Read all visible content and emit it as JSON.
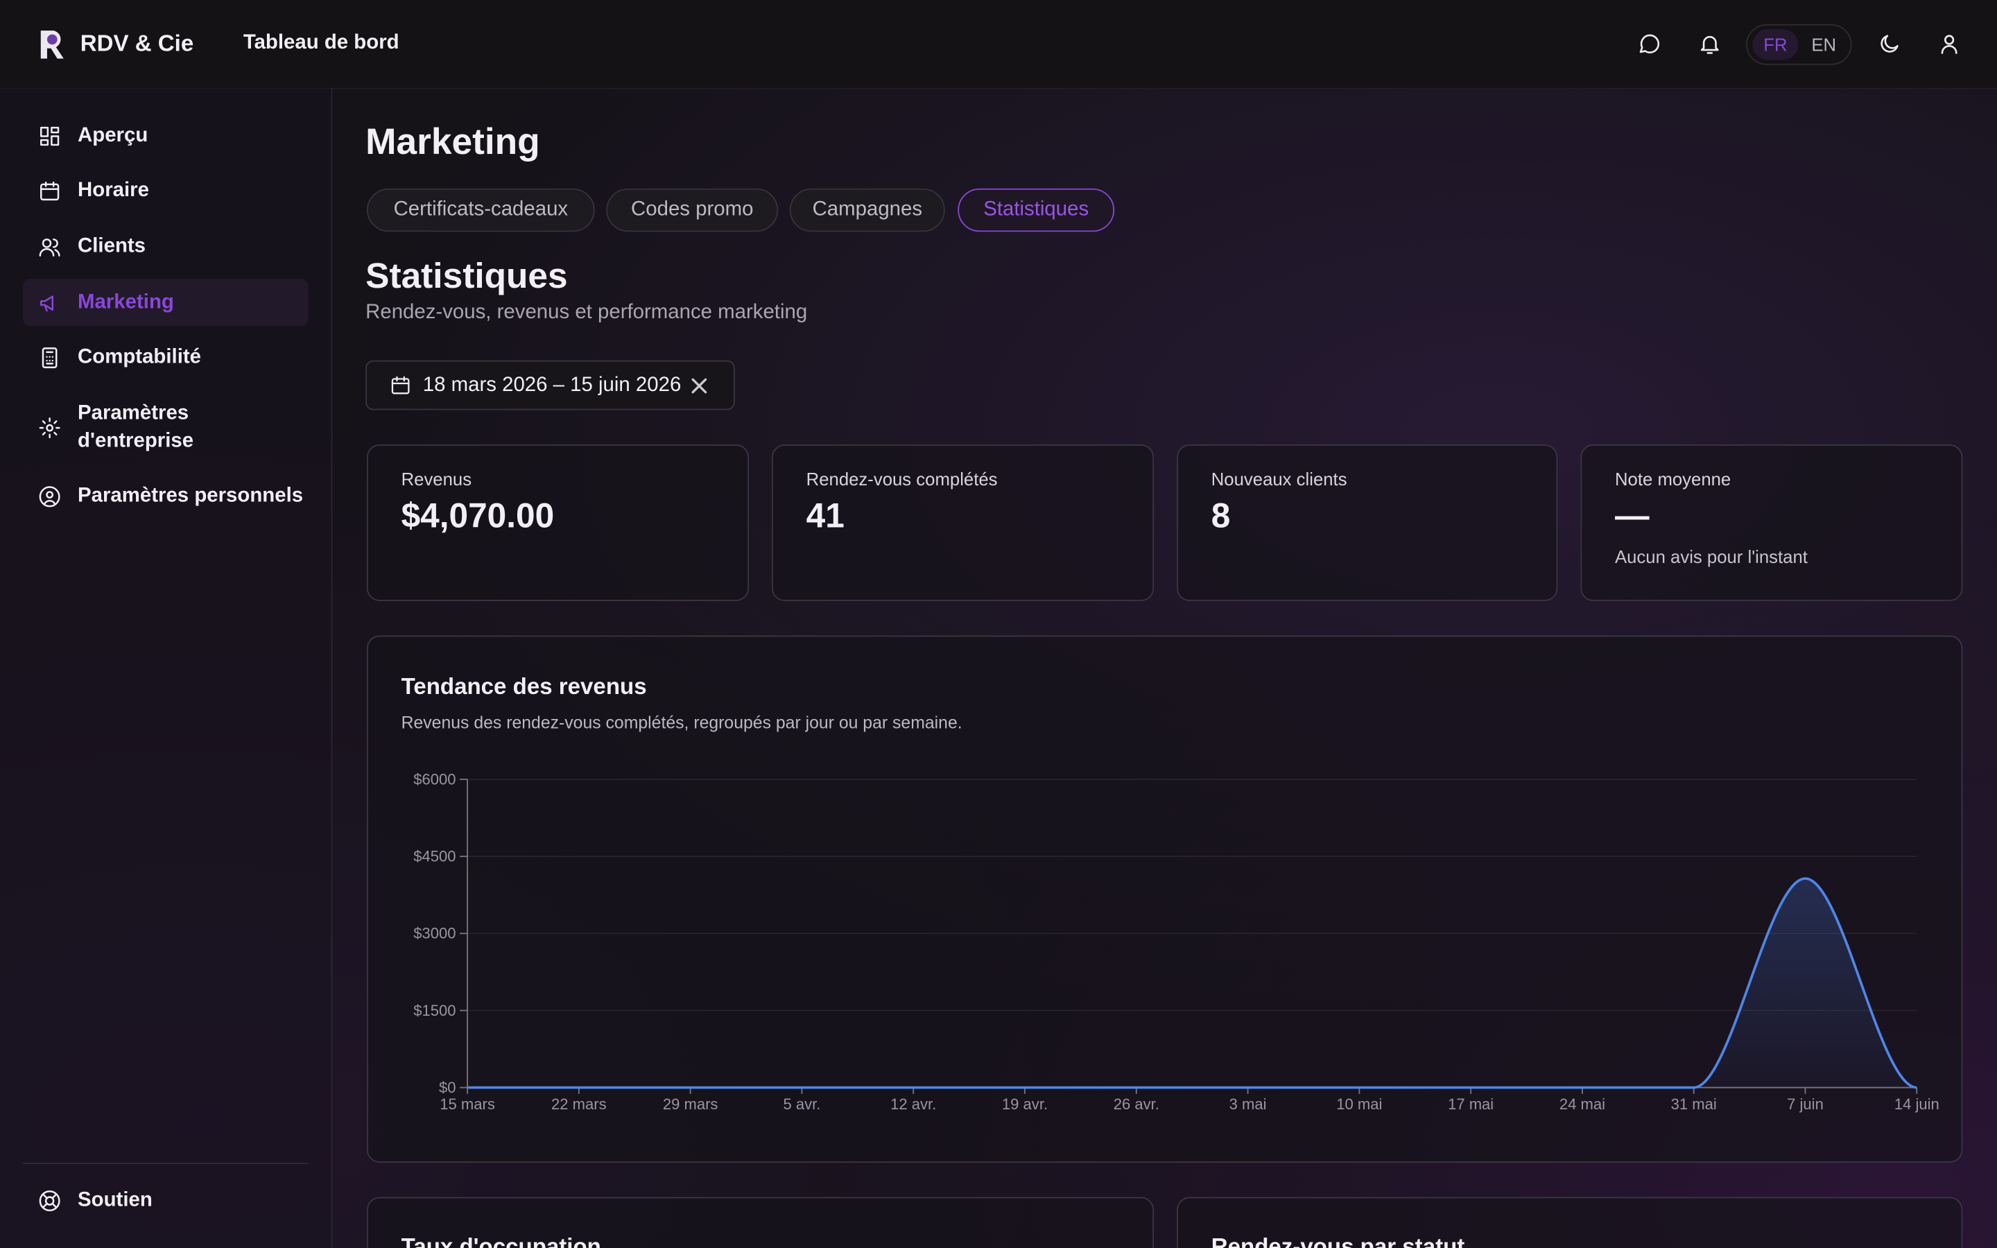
{
  "header": {
    "brand": "RDV & Cie",
    "section": "Tableau de bord",
    "languages": [
      "FR",
      "EN"
    ]
  },
  "nav": {
    "items": [
      "Aperçu",
      "Horaire",
      "Clients",
      "Marketing",
      "Comptabilité",
      "Paramètres d'entreprise",
      "Paramètres personnels"
    ],
    "active": 3,
    "footer": "Soutien"
  },
  "page": {
    "title": "Marketing",
    "tabs": [
      "Certificats-cadeaux",
      "Codes promo",
      "Campagnes",
      "Statistiques"
    ],
    "active_tab": 3,
    "heading": "Statistiques",
    "subtitle": "Rendez-vous, revenus et performance marketing",
    "date_range": "18 mars 2026 – 15 juin 2026"
  },
  "stats": [
    {
      "label": "Revenus",
      "value": "$4,070.00"
    },
    {
      "label": "Rendez-vous complétés",
      "value": "41"
    },
    {
      "label": "Nouveaux clients",
      "value": "8"
    },
    {
      "label": "Note moyenne",
      "value": "—",
      "note": "Aucun avis pour l'instant"
    }
  ],
  "chart_data": {
    "type": "line",
    "title": "Tendance des revenus",
    "subtitle": "Revenus des rendez-vous complétés, regroupés par jour ou par semaine.",
    "categories": [
      "15 mars",
      "22 mars",
      "29 mars",
      "5 avr.",
      "12 avr.",
      "19 avr.",
      "26 avr.",
      "3 mai",
      "10 mai",
      "17 mai",
      "24 mai",
      "31 mai",
      "7 juin",
      "14 juin"
    ],
    "series": [
      {
        "name": "Revenus",
        "color": "#4f86e8",
        "values": [
          0,
          0,
          0,
          0,
          0,
          0,
          0,
          0,
          0,
          0,
          0,
          0,
          4070,
          0
        ]
      }
    ],
    "ylim": [
      0,
      6000
    ],
    "yticks": [
      {
        "value": 0,
        "label": "$0"
      },
      {
        "value": 1500,
        "label": "$1500"
      },
      {
        "value": 3000,
        "label": "$3000"
      },
      {
        "value": 4500,
        "label": "$4500"
      },
      {
        "value": 6000,
        "label": "$6000"
      }
    ],
    "grid": true
  },
  "bottom_cards": [
    "Taux d'occupation",
    "Rendez-vous par statut"
  ]
}
